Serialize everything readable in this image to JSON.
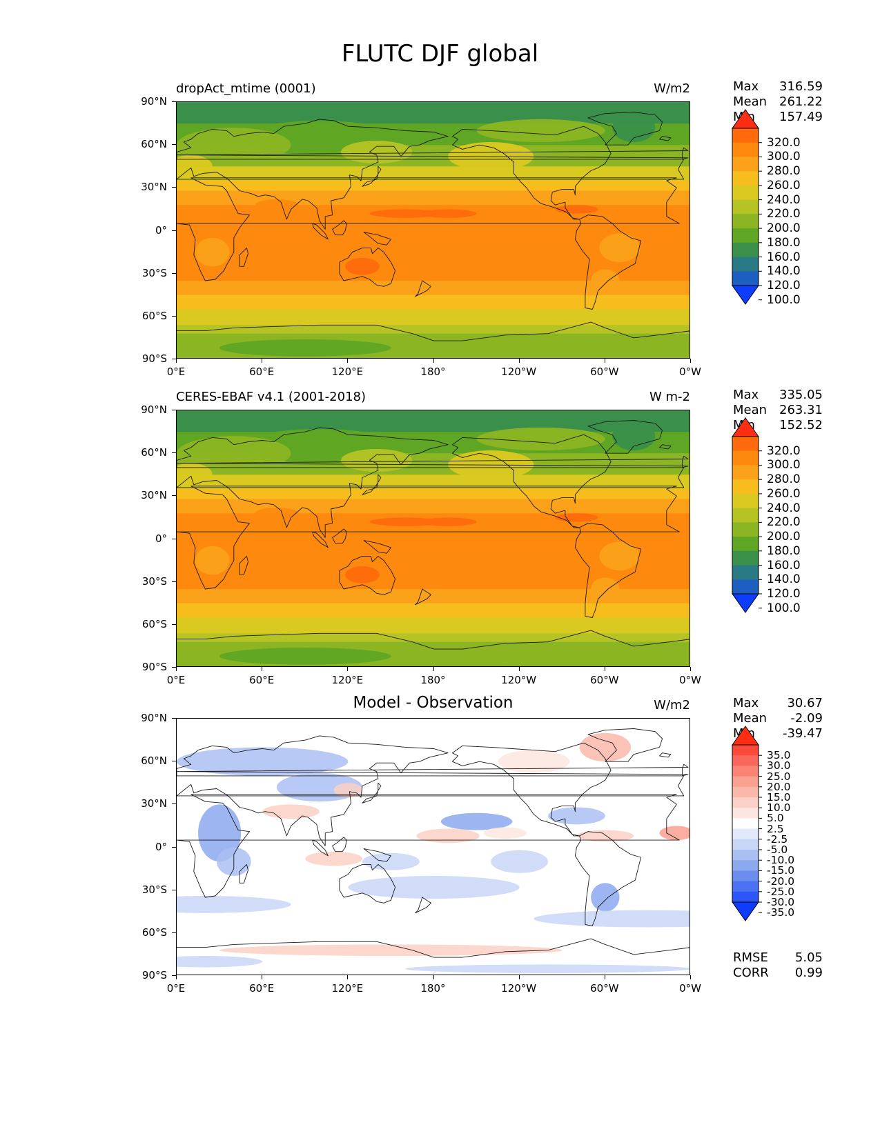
{
  "figure": {
    "title": "FLUTC DJF global"
  },
  "axes": {
    "lat_ticks": [
      "90°N",
      "60°N",
      "30°N",
      "0°",
      "30°S",
      "60°S",
      "90°S"
    ],
    "lon_ticks": [
      "0°E",
      "60°E",
      "120°E",
      "180°",
      "120°W",
      "60°W",
      "0°W"
    ]
  },
  "panels": [
    {
      "name": "dropAct_mtime (0001)",
      "units": "W/m2",
      "stats": [
        {
          "label": "Max",
          "value": "316.59"
        },
        {
          "label": "Mean",
          "value": "261.22"
        },
        {
          "label": "Min",
          "value": "157.49"
        }
      ],
      "colorbar": {
        "labels": [
          "320.0",
          "300.0",
          "280.0",
          "260.0",
          "240.0",
          "220.0",
          "200.0",
          "180.0",
          "160.0",
          "140.0",
          "120.0",
          "100.0"
        ],
        "colors": [
          "#ff2e12",
          "#ff6a0d",
          "#fd8a0f",
          "#fba21a",
          "#f7bd1d",
          "#dac920",
          "#b5c325",
          "#8cb523",
          "#5fa624",
          "#3a8f4b",
          "#2a7a86",
          "#1d5fc0",
          "#0d3dff"
        ]
      },
      "field": "lw"
    },
    {
      "name": "CERES-EBAF v4.1 (2001-2018)",
      "units": "W m-2",
      "stats": [
        {
          "label": "Max",
          "value": "335.05"
        },
        {
          "label": "Mean",
          "value": "263.31"
        },
        {
          "label": "Min",
          "value": "152.52"
        }
      ],
      "colorbar": {
        "labels": [
          "320.0",
          "300.0",
          "280.0",
          "260.0",
          "240.0",
          "220.0",
          "200.0",
          "180.0",
          "160.0",
          "140.0",
          "120.0",
          "100.0"
        ],
        "colors": [
          "#ff2e12",
          "#ff6a0d",
          "#fd8a0f",
          "#fba21a",
          "#f7bd1d",
          "#dac920",
          "#b5c325",
          "#8cb523",
          "#5fa624",
          "#3a8f4b",
          "#2a7a86",
          "#1d5fc0",
          "#0d3dff"
        ]
      },
      "field": "lw"
    },
    {
      "name": "Model - Observation",
      "units": "W/m2",
      "stats": [
        {
          "label": "Max",
          "value": "30.67"
        },
        {
          "label": "Mean",
          "value": "-2.09"
        },
        {
          "label": "Min",
          "value": "-39.47"
        }
      ],
      "extra_stats": [
        {
          "label": "RMSE",
          "value": "5.05"
        },
        {
          "label": "CORR",
          "value": "0.99"
        }
      ],
      "colorbar": {
        "labels": [
          "35.0",
          "30.0",
          "25.0",
          "20.0",
          "15.0",
          "10.0",
          "5.0",
          "2.5",
          "-2.5",
          "-5.0",
          "-10.0",
          "-15.0",
          "-20.0",
          "-25.0",
          "-30.0",
          "-35.0"
        ],
        "colors": [
          "#ff2e12",
          "#fb4a3c",
          "#f8675a",
          "#f98474",
          "#f9a090",
          "#fab8aa",
          "#fbd0c6",
          "#fde6e0",
          "#ffffff",
          "#e1e9fb",
          "#c8d6f7",
          "#aabff2",
          "#8ca8ef",
          "#6b8eee",
          "#4a72f2",
          "#2c56f8",
          "#0d3dff"
        ]
      },
      "field": "diff"
    }
  ]
}
